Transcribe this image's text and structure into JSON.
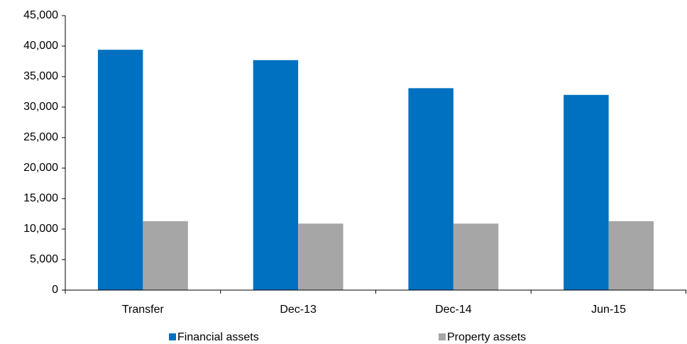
{
  "chart_data": {
    "type": "bar",
    "categories": [
      "Transfer",
      "Dec-13",
      "Dec-14",
      "Jun-15"
    ],
    "series": [
      {
        "name": "Financial assets",
        "color": "#0070c0",
        "values": [
          39400,
          37700,
          33100,
          32000
        ]
      },
      {
        "name": "Property assets",
        "color": "#a6a6a6",
        "values": [
          11300,
          10900,
          10900,
          11300
        ]
      }
    ],
    "ylim": [
      0,
      45000
    ],
    "yticks": [
      0,
      {
        "value": 5000,
        "label": "5,000"
      },
      {
        "value": 10000,
        "label": "10,000"
      },
      {
        "value": 15000,
        "label": "15,000"
      },
      {
        "value": 20000,
        "label": "20,000"
      },
      {
        "value": 25000,
        "label": "25,000"
      },
      {
        "value": 30000,
        "label": "30,000"
      },
      {
        "value": 35000,
        "label": "35,000"
      },
      {
        "value": 40000,
        "label": "40,000"
      },
      {
        "value": 45000,
        "label": "45,000"
      }
    ],
    "grid": false,
    "legend": "bottom"
  }
}
